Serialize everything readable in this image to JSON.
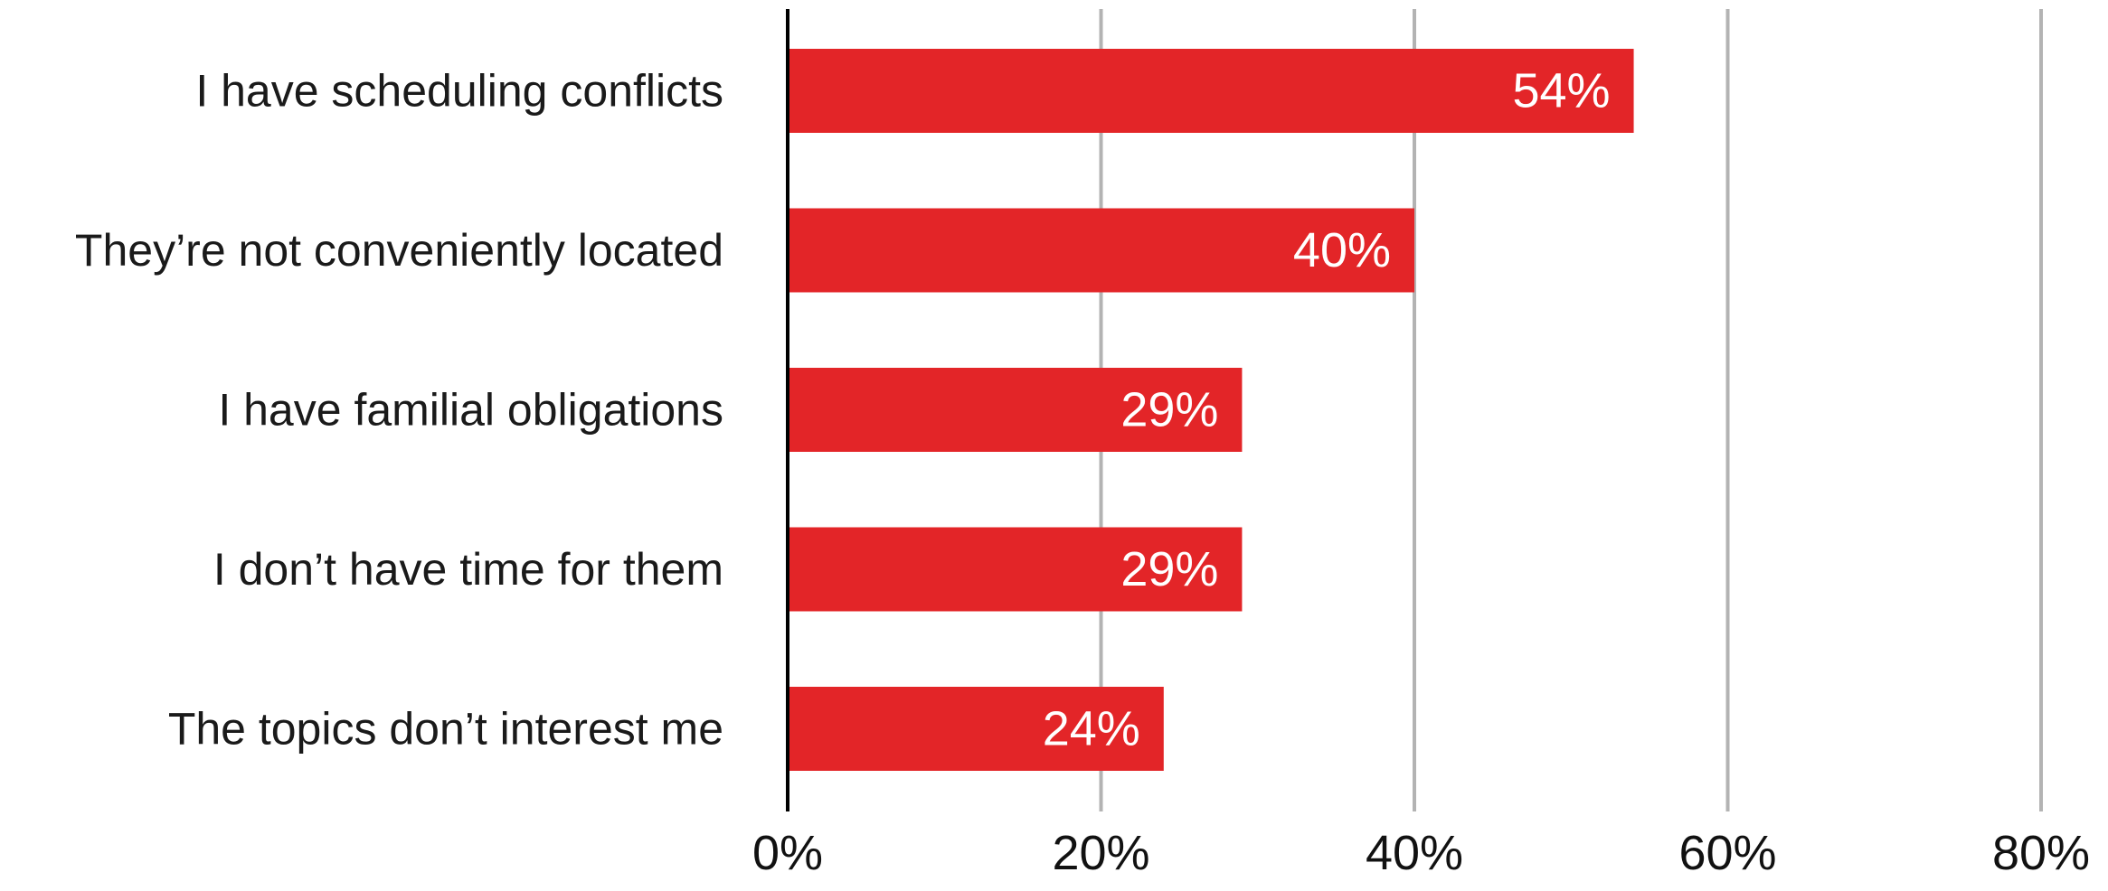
{
  "chart_data": {
    "type": "bar",
    "orientation": "horizontal",
    "categories": [
      "I have scheduling conflicts",
      "They’re not conveniently located",
      "I have familial obligations",
      "I don’t have time for them",
      "The topics don’t interest me"
    ],
    "values": [
      54,
      40,
      29,
      29,
      24
    ],
    "value_labels": [
      "54%",
      "40%",
      "29%",
      "29%",
      "24%"
    ],
    "title": "",
    "xlabel": "",
    "ylabel": "",
    "xlim": [
      0,
      80
    ],
    "x_ticks": [
      0,
      20,
      40,
      60,
      80
    ],
    "x_tick_labels": [
      "0%",
      "20%",
      "40%",
      "60%",
      "80%"
    ],
    "grid": "vertical",
    "legend": "none",
    "colors": {
      "bar": "#e32528",
      "grid": "#b3b3b3",
      "axis": "#000000",
      "data_label": "#ffffff"
    }
  }
}
